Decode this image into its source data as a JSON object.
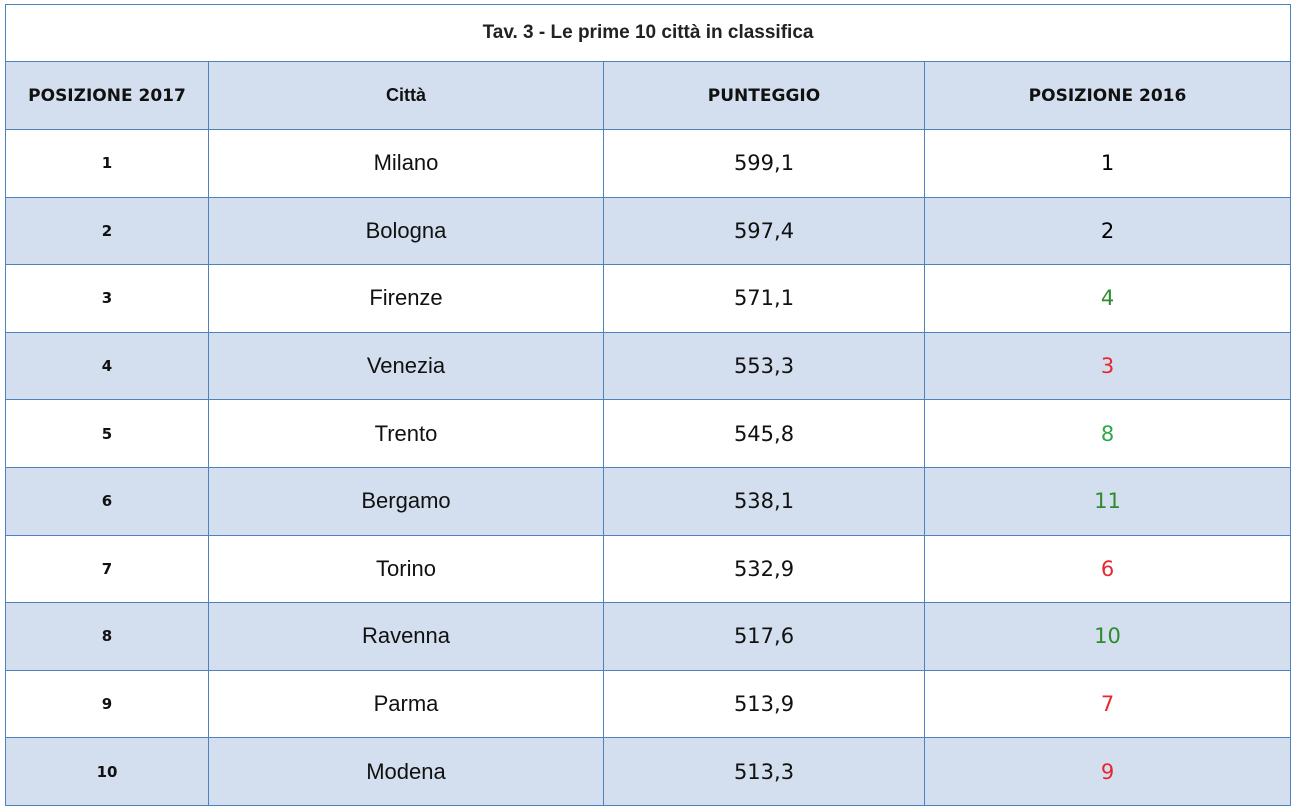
{
  "table": {
    "title": "Tav. 3 - Le prime 10 città in classifica",
    "header": [
      "POSIZIONE  2017",
      "Città",
      "PUNTEGGIO",
      "POSIZIONE 2016"
    ],
    "rows": [
      [
        "1",
        "Milano",
        "599,1",
        "1"
      ],
      [
        "2",
        "Bologna",
        "597,4",
        "2"
      ],
      [
        "3",
        "Firenze",
        "571,1",
        "4"
      ],
      [
        "4",
        "Venezia",
        "553,3",
        "3"
      ],
      [
        "5",
        "Trento",
        "545,8",
        "8"
      ],
      [
        "6",
        "Bergamo",
        "538,1",
        "11"
      ],
      [
        "7",
        "Torino",
        "532,9",
        "6"
      ],
      [
        "8",
        "Ravenna",
        "517,6",
        "10"
      ],
      [
        "9",
        "Parma",
        "513,9",
        "7"
      ],
      [
        "10",
        "Modena",
        "513,3",
        "9"
      ]
    ],
    "position_2016_colors": [
      "#000000",
      "#000000",
      "#2e8b2e",
      "#e8262e",
      "#2ea84a",
      "#2e8b2e",
      "#e8262e",
      "#2e8b2e",
      "#e8262e",
      "#e8262e"
    ],
    "stripe_color": "#d3dfee",
    "border_color": "#4f81bd"
  }
}
